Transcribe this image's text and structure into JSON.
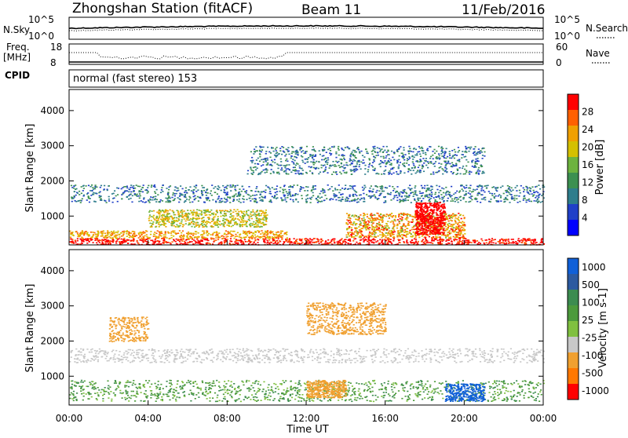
{
  "header": {
    "station": "Zhongshan Station (fitACF)",
    "beam": "Beam 11",
    "date": "11/Feb/2016"
  },
  "top_panels": {
    "nsky_label": "N.Sky",
    "nsky_ticks": [
      "10^5",
      "10^0"
    ],
    "nsearch_label": "N.Search",
    "nsearch_ticks": [
      "10^5",
      "10^0"
    ],
    "freq_label": "Freq.",
    "freq_unit": "[MHz]",
    "freq_ticks": [
      "18",
      "8"
    ],
    "nave_label": "Nave",
    "nave_ticks": [
      "60",
      "0"
    ],
    "cpid_label": "CPID",
    "cpid_text": "normal (fast stereo) 153"
  },
  "colors": {
    "power_scale": [
      "#0000ff",
      "#2040c8",
      "#2e7d8c",
      "#3c9050",
      "#6db33f",
      "#d4c000",
      "#f0a000",
      "#ff6000",
      "#ff0000"
    ],
    "velocity_scale": [
      "#1060d8",
      "#2c5aa0",
      "#3c8c50",
      "#4c9a3c",
      "#80c040",
      "#c8c8c8",
      "#f0a030",
      "#ff7800",
      "#ff0000"
    ]
  },
  "chart_data": [
    {
      "type": "heatmap",
      "title": "Power",
      "ylabel": "Slant Range [km]",
      "ylim": [
        180,
        4600
      ],
      "y_ticks": [
        "1000",
        "2000",
        "3000",
        "4000"
      ],
      "colorbar_label": "Power [dB]",
      "colorbar_ticks": [
        "4",
        "8",
        "12",
        "16",
        "20",
        "24",
        "28"
      ],
      "grid": false
    },
    {
      "type": "heatmap",
      "title": "Velocity",
      "xlabel": "Time UT",
      "ylabel": "Slant Range [km]",
      "ylim": [
        180,
        4600
      ],
      "x_ticks": [
        "00:00",
        "04:00",
        "08:00",
        "12:00",
        "16:00",
        "20:00",
        "00:00"
      ],
      "y_ticks": [
        "1000",
        "2000",
        "3000",
        "4000"
      ],
      "colorbar_label": "Velocity [m s-1]",
      "colorbar_ticks": [
        "1000",
        "500",
        "100",
        "25",
        "-25",
        "-100",
        "-500",
        "-1000"
      ],
      "grid": false
    }
  ]
}
